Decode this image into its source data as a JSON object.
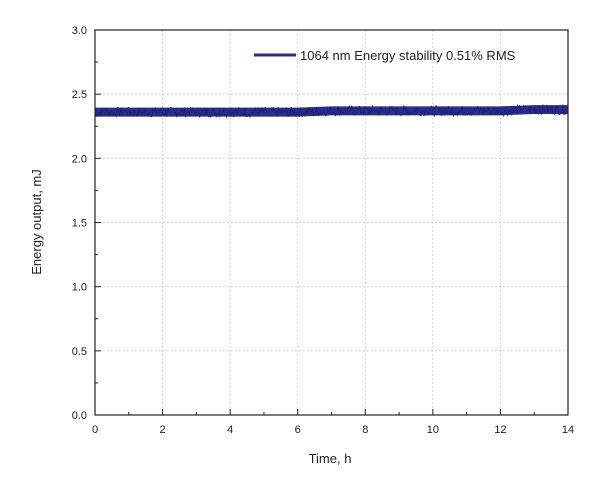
{
  "chart_data": {
    "type": "line",
    "xlabel": "Time, h",
    "ylabel": "Energy output, mJ",
    "xlim": [
      0,
      14
    ],
    "ylim": [
      0,
      3.0
    ],
    "xticks": [
      0,
      2,
      4,
      6,
      8,
      10,
      12,
      14
    ],
    "yticks": [
      0.0,
      0.5,
      1.0,
      1.5,
      2.0,
      2.5,
      3.0
    ],
    "ytick_labels": [
      "0.0",
      "0.5",
      "1.0",
      "1.5",
      "2.0",
      "2.5",
      "3.0"
    ],
    "grid": true,
    "legend_position": "top-right",
    "series": [
      {
        "name": "1064 nm Energy stability 0.51% RMS",
        "color": "#2b2b8f",
        "x": [
          0,
          1,
          2,
          3,
          4,
          5,
          6,
          7,
          8,
          9,
          10,
          11,
          12,
          13,
          14
        ],
        "values": [
          2.36,
          2.36,
          2.36,
          2.36,
          2.36,
          2.36,
          2.36,
          2.37,
          2.37,
          2.37,
          2.37,
          2.37,
          2.37,
          2.38,
          2.38
        ],
        "band_halfwidth": 0.035
      }
    ]
  }
}
